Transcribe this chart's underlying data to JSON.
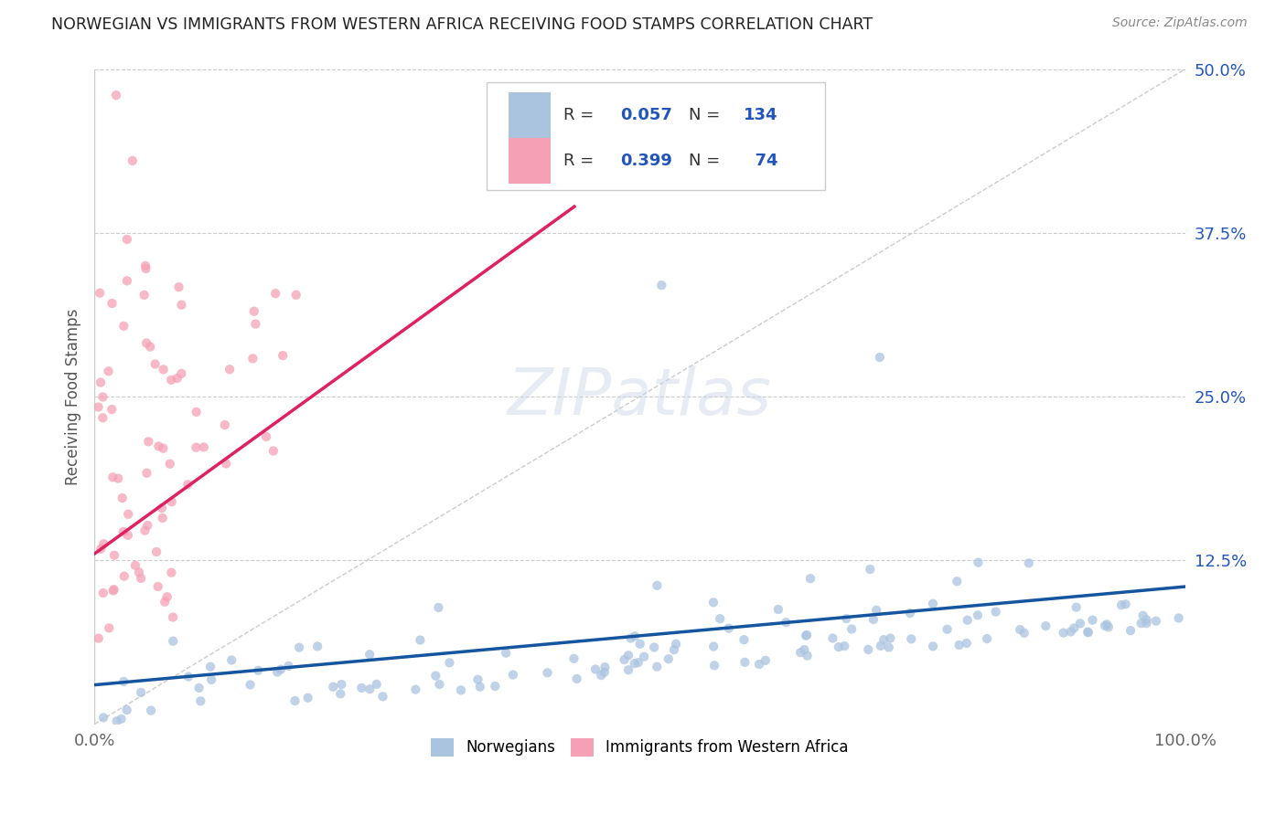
{
  "title": "NORWEGIAN VS IMMIGRANTS FROM WESTERN AFRICA RECEIVING FOOD STAMPS CORRELATION CHART",
  "source": "Source: ZipAtlas.com",
  "ylabel": "Receiving Food Stamps",
  "xlim": [
    0,
    1.0
  ],
  "ylim": [
    0,
    0.5
  ],
  "yticks": [
    0.0,
    0.125,
    0.25,
    0.375,
    0.5
  ],
  "ytick_labels": [
    "",
    "12.5%",
    "25.0%",
    "37.5%",
    "50.0%"
  ],
  "xtick_labels": [
    "0.0%",
    "100.0%"
  ],
  "r_norwegian": 0.057,
  "n_norwegian": 134,
  "r_western_africa": 0.399,
  "n_western_africa": 74,
  "color_norwegian": "#aac4e0",
  "color_western_africa": "#f5a0b5",
  "line_color_norwegian": "#1555a0",
  "line_color_western_africa": "#e02060",
  "title_color": "#222222",
  "legend_r_color": "#2255bb",
  "background_color": "#ffffff",
  "grid_color": "#cccccc",
  "watermark": "ZIPatlas",
  "nor_line_x0": 0.0,
  "nor_line_y0": 0.03,
  "nor_line_x1": 1.0,
  "nor_line_y1": 0.105,
  "waf_line_x0": 0.0,
  "waf_line_y0": 0.13,
  "waf_line_x1": 0.44,
  "waf_line_y1": 0.395
}
